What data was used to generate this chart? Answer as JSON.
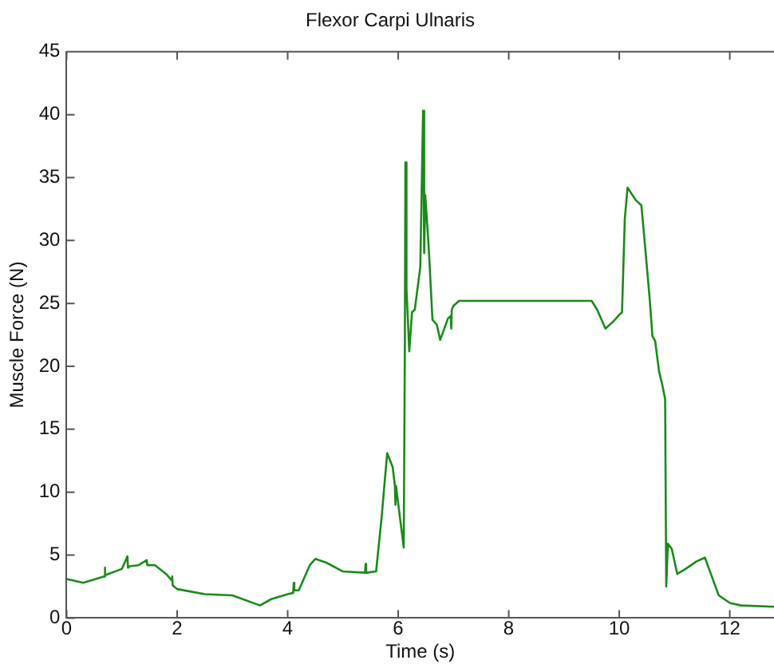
{
  "chart_data": {
    "type": "line",
    "title": "Flexor Carpi Ulnaris",
    "xlabel": "Time (s)",
    "ylabel": "Muscle Force (N)",
    "x": [
      0,
      0.3,
      0.68,
      0.69,
      0.7,
      1.0,
      1.1,
      1.11,
      1.12,
      1.3,
      1.45,
      1.46,
      1.47,
      1.6,
      1.8,
      1.9,
      1.91,
      1.92,
      2.0,
      2.5,
      3.0,
      3.5,
      3.7,
      4.0,
      4.1,
      4.11,
      4.12,
      4.2,
      4.4,
      4.5,
      4.7,
      5.0,
      5.4,
      5.41,
      5.42,
      5.6,
      5.7,
      5.8,
      5.9,
      5.94,
      5.95,
      5.96,
      6.1,
      6.12,
      6.13,
      6.15,
      6.2,
      6.25,
      6.3,
      6.4,
      6.45,
      6.47,
      6.49,
      6.55,
      6.62,
      6.7,
      6.76,
      6.9,
      6.95,
      6.96,
      6.97,
      7.0,
      7.1,
      9.5,
      9.6,
      9.75,
      9.9,
      10.0,
      10.05,
      10.1,
      10.15,
      10.3,
      10.4,
      10.45,
      10.55,
      10.6,
      10.65,
      10.72,
      10.78,
      10.83,
      10.85,
      10.88,
      10.95,
      11.05,
      11.2,
      11.4,
      11.55,
      11.65,
      11.8,
      12.0,
      12.2,
      12.8
    ],
    "series": [
      {
        "color": "#1a8a1a",
        "values": [
          3.1,
          2.8,
          3.3,
          4.0,
          3.4,
          3.9,
          4.9,
          4.0,
          4.1,
          4.2,
          4.6,
          4.2,
          4.2,
          4.2,
          3.5,
          3.0,
          3.3,
          2.6,
          2.3,
          1.9,
          1.8,
          1.0,
          1.5,
          1.9,
          2.0,
          2.8,
          2.2,
          2.2,
          4.2,
          4.7,
          4.4,
          3.7,
          3.6,
          4.3,
          3.6,
          3.7,
          8.0,
          13.1,
          12.0,
          10.5,
          9.0,
          10.5,
          5.6,
          21.2,
          36.2,
          26.2,
          21.2,
          24.3,
          24.5,
          27.9,
          40.3,
          29.0,
          33.6,
          29.6,
          23.7,
          23.3,
          22.1,
          23.8,
          24.0,
          23.0,
          24.5,
          24.8,
          25.2,
          25.2,
          24.5,
          23.0,
          23.6,
          24.1,
          24.3,
          31.7,
          34.2,
          33.2,
          32.8,
          30.4,
          25.4,
          22.4,
          22.0,
          19.6,
          18.5,
          17.4,
          2.5,
          5.9,
          5.5,
          3.5,
          3.9,
          4.5,
          4.8,
          3.6,
          1.8,
          1.2,
          1.0,
          0.9
        ]
      }
    ],
    "xlim": [
      0,
      12.8
    ],
    "xticks": [
      0,
      2,
      4,
      6,
      8,
      10,
      12
    ],
    "ylim": [
      0,
      45
    ],
    "yticks": [
      0,
      5,
      10,
      15,
      20,
      25,
      30,
      35,
      40,
      45
    ],
    "grid": false,
    "legend": false,
    "marker": "none",
    "line_style": "solid"
  }
}
